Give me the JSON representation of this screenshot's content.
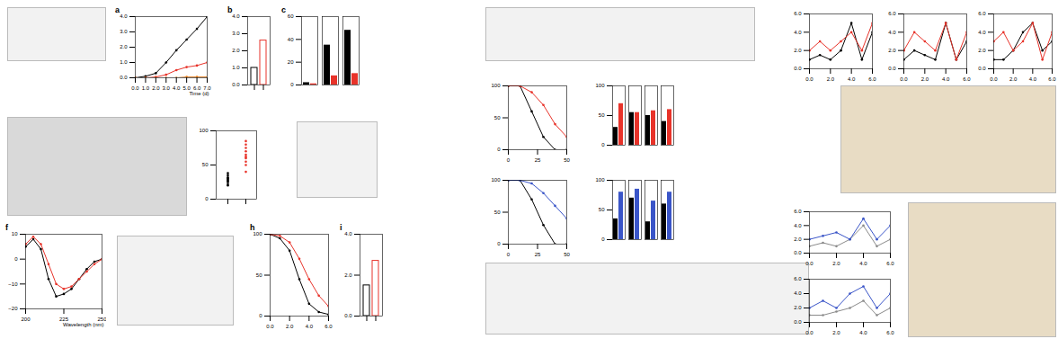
{
  "chart_data": [
    {
      "type": "line",
      "title": "a",
      "x_label": "Time (d)",
      "x": [
        0,
        1,
        2,
        3,
        4,
        5,
        6,
        7
      ],
      "xlim": [
        0,
        7
      ],
      "xticks": [
        0,
        1,
        2,
        3,
        4,
        5,
        6,
        7
      ],
      "ylim": [
        0,
        4
      ],
      "yticks": [
        0,
        1,
        2,
        3,
        4
      ],
      "series": [
        {
          "color": "#000000",
          "values": [
            0,
            0.1,
            0.3,
            1.0,
            1.8,
            2.5,
            3.2,
            4.0
          ]
        },
        {
          "color": "#e8332a",
          "values": [
            0,
            0,
            0.05,
            0.2,
            0.5,
            0.7,
            0.8,
            1.0
          ]
        },
        {
          "color": "#e07b1a",
          "values": [
            0,
            0,
            0,
            0,
            0,
            0.05,
            0.05,
            0.05
          ]
        }
      ]
    },
    {
      "type": "bar",
      "title": "b",
      "categories": [
        null,
        null
      ],
      "values": [
        1.0,
        2.6
      ],
      "colors": [
        "#000000",
        "#e8332a"
      ],
      "ylim": [
        0,
        4
      ],
      "yticks": [
        0,
        1,
        2,
        3,
        4
      ]
    },
    {
      "type": "bar",
      "title": "c",
      "categories": [
        null,
        null,
        null
      ],
      "ylim": [
        0,
        60
      ],
      "yticks": [
        0,
        20,
        40,
        60
      ],
      "series": [
        {
          "color": "#000000",
          "values": [
            2,
            35,
            48
          ]
        },
        {
          "color": "#e8332a",
          "values": [
            1,
            8,
            10
          ]
        }
      ]
    },
    {
      "type": "scatter",
      "categories": [
        null,
        null
      ],
      "ylim": [
        0,
        100
      ],
      "yticks": [
        0,
        50,
        100
      ],
      "colors": [
        "#000000",
        "#e8332a"
      ],
      "values": [
        [
          20,
          25,
          28,
          30,
          32,
          35,
          38,
          22,
          26,
          30
        ],
        [
          40,
          55,
          60,
          65,
          70,
          75,
          80,
          50,
          62,
          85
        ]
      ]
    },
    {
      "type": "line",
      "title": "f",
      "x_label": "Wavelength (nm)",
      "x": [
        200,
        205,
        210,
        215,
        220,
        225,
        230,
        235,
        240,
        245,
        250
      ],
      "xlim": [
        200,
        250
      ],
      "xticks": [
        200,
        225,
        250
      ],
      "ylim": [
        -20,
        10
      ],
      "yticks": [
        -20,
        -10,
        0,
        10
      ],
      "series": [
        {
          "color": "#000000",
          "values": [
            5,
            8,
            4,
            -8,
            -15,
            -14,
            -12,
            -8,
            -4,
            -1,
            0
          ]
        },
        {
          "color": "#e8332a",
          "values": [
            6,
            9,
            6,
            -2,
            -10,
            -12,
            -11,
            -8,
            -5,
            -2,
            0
          ]
        }
      ]
    },
    {
      "type": "line",
      "title": "h",
      "x": [
        0,
        1,
        2,
        3,
        4,
        5,
        6
      ],
      "xlim": [
        0,
        6
      ],
      "xticks": [
        0,
        2,
        4,
        6
      ],
      "ylim": [
        0,
        100
      ],
      "yticks": [
        0,
        50,
        100
      ],
      "series": [
        {
          "color": "#000000",
          "values": [
            100,
            95,
            80,
            45,
            15,
            5,
            2
          ]
        },
        {
          "color": "#e8332a",
          "values": [
            100,
            98,
            90,
            70,
            45,
            25,
            12
          ]
        }
      ]
    },
    {
      "type": "bar",
      "title": "i",
      "categories": [
        null,
        null
      ],
      "values": [
        1.5,
        2.7
      ],
      "colors": [
        "#000000",
        "#e8332a"
      ],
      "ylim": [
        0,
        4
      ],
      "yticks": [
        0,
        2,
        4
      ]
    },
    {
      "type": "line",
      "x": [
        0,
        10,
        20,
        30,
        40,
        50
      ],
      "xlim": [
        0,
        50
      ],
      "xticks": [
        0,
        25,
        50
      ],
      "ylim": [
        0,
        100
      ],
      "yticks": [
        0,
        50,
        100
      ],
      "series": [
        {
          "color": "#000000",
          "values": [
            100,
            100,
            60,
            20,
            0,
            0
          ]
        },
        {
          "color": "#e8332a",
          "values": [
            100,
            100,
            90,
            70,
            40,
            20
          ]
        }
      ]
    },
    {
      "type": "line",
      "x": [
        0,
        10,
        20,
        30,
        40,
        50
      ],
      "xlim": [
        0,
        50
      ],
      "xticks": [
        0,
        25,
        50
      ],
      "ylim": [
        0,
        100
      ],
      "yticks": [
        0,
        50,
        100
      ],
      "series": [
        {
          "color": "#000000",
          "values": [
            100,
            100,
            70,
            30,
            0,
            0
          ]
        },
        {
          "color": "#3a55c8",
          "values": [
            100,
            100,
            95,
            80,
            60,
            40
          ]
        }
      ]
    },
    {
      "type": "bar",
      "categories": [
        null,
        null,
        null,
        null
      ],
      "ylim": [
        0,
        100
      ],
      "yticks": [
        0,
        50,
        100
      ],
      "series": [
        {
          "color": "#000000",
          "values": [
            30,
            55,
            50,
            40
          ]
        },
        {
          "color": "#e8332a",
          "values": [
            70,
            55,
            58,
            60
          ]
        }
      ]
    },
    {
      "type": "bar",
      "categories": [
        null,
        null,
        null,
        null
      ],
      "ylim": [
        0,
        100
      ],
      "yticks": [
        0,
        50,
        100
      ],
      "series": [
        {
          "color": "#000000",
          "values": [
            35,
            70,
            30,
            60
          ]
        },
        {
          "color": "#3a55c8",
          "values": [
            80,
            85,
            65,
            80
          ]
        }
      ]
    },
    {
      "type": "line",
      "x": [
        0,
        1,
        2,
        3,
        4,
        5,
        6
      ],
      "xlim": [
        0,
        6
      ],
      "xticks": [
        0,
        2,
        4,
        6
      ],
      "ylim": [
        0,
        6
      ],
      "yticks": [
        0,
        2,
        4,
        6
      ],
      "series": [
        {
          "color": "#000000",
          "values": [
            1,
            1.5,
            1,
            2,
            5,
            1,
            4
          ]
        },
        {
          "color": "#e8332a",
          "values": [
            2,
            3,
            2,
            3,
            4,
            2,
            5
          ]
        }
      ]
    },
    {
      "type": "line",
      "x": [
        0,
        1,
        2,
        3,
        4,
        5,
        6
      ],
      "xlim": [
        0,
        6
      ],
      "xticks": [
        0,
        2,
        4,
        6
      ],
      "ylim": [
        0,
        6
      ],
      "yticks": [
        0,
        2,
        4,
        6
      ],
      "series": [
        {
          "color": "#000000",
          "values": [
            1,
            2,
            1.5,
            1,
            5,
            1,
            3
          ]
        },
        {
          "color": "#e8332a",
          "values": [
            2,
            4,
            3,
            2,
            5,
            1,
            4
          ]
        }
      ]
    },
    {
      "type": "line",
      "x": [
        0,
        1,
        2,
        3,
        4,
        5,
        6
      ],
      "xlim": [
        0,
        6
      ],
      "xticks": [
        0,
        2,
        4,
        6
      ],
      "ylim": [
        0,
        6
      ],
      "yticks": [
        0,
        2,
        4,
        6
      ],
      "series": [
        {
          "color": "#000000",
          "values": [
            1,
            1,
            2,
            4,
            5,
            2,
            3
          ]
        },
        {
          "color": "#e8332a",
          "values": [
            3,
            4,
            2,
            3,
            5,
            1,
            4
          ]
        }
      ]
    },
    {
      "type": "line",
      "x": [
        0,
        1,
        2,
        3,
        4,
        5,
        6
      ],
      "xlim": [
        0,
        6
      ],
      "xticks": [
        0,
        2,
        4,
        6
      ],
      "ylim": [
        0,
        6
      ],
      "yticks": [
        0,
        2,
        4,
        6
      ],
      "series": [
        {
          "color": "#8a8a8a",
          "values": [
            1,
            1.5,
            1,
            2,
            4,
            1,
            2
          ]
        },
        {
          "color": "#3a55c8",
          "values": [
            2,
            2.5,
            3,
            2,
            5,
            2,
            4
          ]
        }
      ]
    },
    {
      "type": "line",
      "x": [
        0,
        1,
        2,
        3,
        4,
        5,
        6
      ],
      "xlim": [
        0,
        6
      ],
      "xticks": [
        0,
        2,
        4,
        6
      ],
      "ylim": [
        0,
        6
      ],
      "yticks": [
        0,
        2,
        4,
        6
      ],
      "series": [
        {
          "color": "#8a8a8a",
          "values": [
            1,
            1,
            1.5,
            2,
            3,
            1,
            2
          ]
        },
        {
          "color": "#3a55c8",
          "values": [
            2,
            3,
            2,
            4,
            5,
            2,
            4
          ]
        }
      ]
    }
  ]
}
